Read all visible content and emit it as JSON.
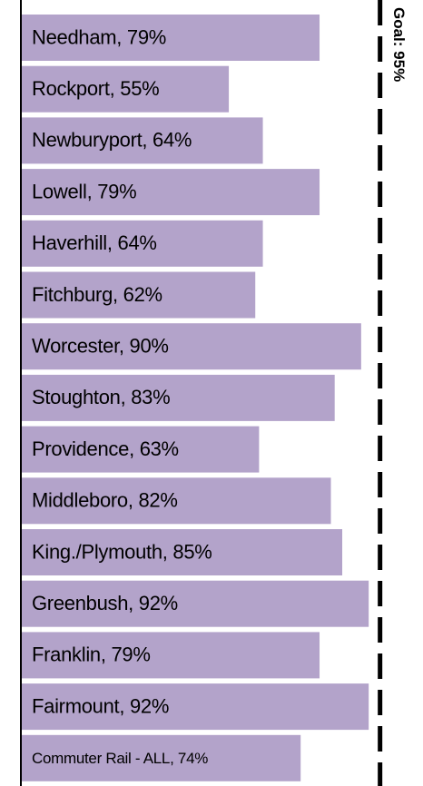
{
  "chart_data": {
    "type": "bar",
    "orientation": "horizontal",
    "color": "#b3a3ca",
    "value_labels": [
      "Needham, 79%",
      "Rockport, 55%",
      "Newburyport, 64%",
      "Lowell, 79%",
      "Haverhill, 64%",
      "Fitchburg, 62%",
      "Worcester, 90%",
      "Stoughton, 83%",
      "Providence, 63%",
      "Middleboro, 82%",
      "King./Plymouth, 85%",
      "Greenbush, 92%",
      "Franklin, 79%",
      "Fairmount, 92%",
      "Commuter Rail - ALL, 74%"
    ],
    "values": [
      79,
      55,
      64,
      79,
      64,
      62,
      90,
      83,
      63,
      82,
      85,
      92,
      79,
      92,
      74
    ],
    "xlim": [
      0,
      100
    ],
    "goal": {
      "value": 95,
      "label": "Goal: 95%"
    }
  }
}
